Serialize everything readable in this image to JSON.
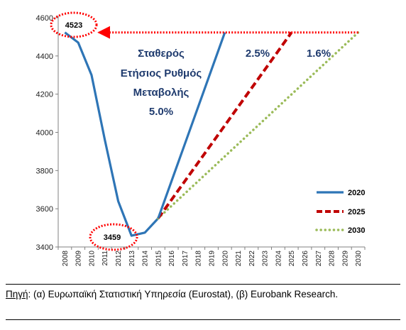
{
  "chart_data": {
    "type": "line",
    "x": [
      "2008",
      "2009",
      "2010",
      "2011",
      "2012",
      "2013",
      "2014",
      "2015",
      "2016",
      "2017",
      "2018",
      "2019",
      "2020",
      "2021",
      "2022",
      "2023",
      "2024",
      "2025",
      "2026",
      "2027",
      "2028",
      "2029",
      "2030"
    ],
    "ylim": [
      3400,
      4600
    ],
    "yticks": [
      3400,
      3600,
      3800,
      4000,
      4200,
      4400,
      4600
    ],
    "grid": false,
    "legend_position": "bottom-right",
    "historical": [
      {
        "x": "2008",
        "y": 4523
      },
      {
        "x": "2009",
        "y": 4470
      },
      {
        "x": "2010",
        "y": 4300
      },
      {
        "x": "2011",
        "y": 3960
      },
      {
        "x": "2012",
        "y": 3640
      },
      {
        "x": "2013",
        "y": 3459
      },
      {
        "x": "2014",
        "y": 3475
      },
      {
        "x": "2015",
        "y": 3550
      }
    ],
    "series": [
      {
        "name": "2020",
        "color": "#2e75b6",
        "style": "solid",
        "start": {
          "x": "2015",
          "y": 3550
        },
        "end": {
          "x": "2020",
          "y": 4523
        }
      },
      {
        "name": "2025",
        "color": "#c00000",
        "style": "dashed",
        "start": {
          "x": "2015",
          "y": 3550
        },
        "end": {
          "x": "2025",
          "y": 4523
        }
      },
      {
        "name": "2030",
        "color": "#9bbb59",
        "style": "dotted",
        "start": {
          "x": "2015",
          "y": 3550
        },
        "end": {
          "x": "2030",
          "y": 4523
        }
      }
    ],
    "annotations": {
      "peak_value": "4523",
      "trough_value": "3459",
      "rate_main": [
        "Σταθερός",
        "Ετήσιος Ρυθμός",
        "Μεταβολής",
        "5.0%"
      ],
      "rate_2025": "2.5%",
      "rate_2030": "1.6%",
      "arrow_color": "#ff0000"
    }
  },
  "source": {
    "label": "Πηγή",
    "text": ": (α) Ευρωπαϊκή Στατιστική Υπηρεσία (Eurostat), (β) Eurobank Research."
  }
}
